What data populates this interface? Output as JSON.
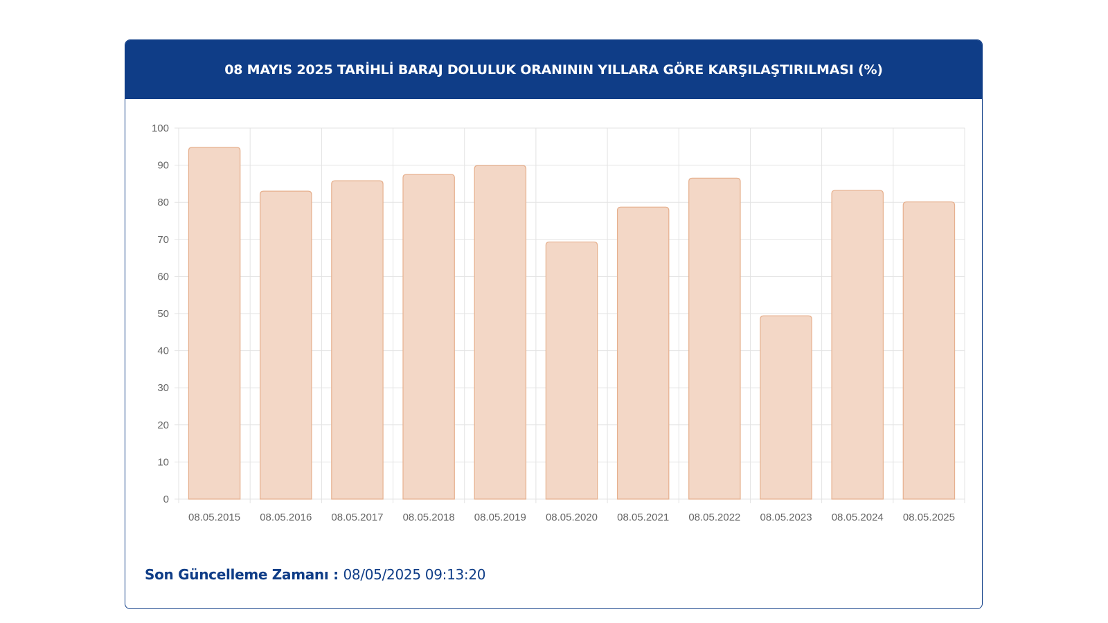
{
  "card": {
    "title": "08 MAYIS 2025 TARİHLİ BARAJ DOLULUK ORANININ YILLARA GÖRE KARŞILAŞTIRILMASI (%)"
  },
  "footer": {
    "label": "Son Güncelleme Zamanı",
    "separator": " : ",
    "value": "08/05/2025 09:13:20"
  },
  "colors": {
    "header_bg": "#0f3d87",
    "bar_fill": "#f3d7c6",
    "bar_stroke": "#e6b08e",
    "grid": "#e3e3e3",
    "tick_text": "#666666"
  },
  "chart_data": {
    "type": "bar",
    "title": "08 MAYIS 2025 TARİHLİ BARAJ DOLULUK ORANININ YILLARA GÖRE KARŞILAŞTIRILMASI (%)",
    "xlabel": "",
    "ylabel": "",
    "ylim": [
      0,
      100
    ],
    "yticks": [
      0,
      10,
      20,
      30,
      40,
      50,
      60,
      70,
      80,
      90,
      100
    ],
    "grid": true,
    "legend": "none",
    "categories": [
      "08.05.2015",
      "08.05.2016",
      "08.05.2017",
      "08.05.2018",
      "08.05.2019",
      "08.05.2020",
      "08.05.2021",
      "08.05.2022",
      "08.05.2023",
      "08.05.2024",
      "08.05.2025"
    ],
    "values": [
      94.8,
      83.0,
      85.8,
      87.5,
      89.9,
      69.3,
      78.7,
      86.5,
      49.4,
      83.2,
      80.1
    ]
  }
}
